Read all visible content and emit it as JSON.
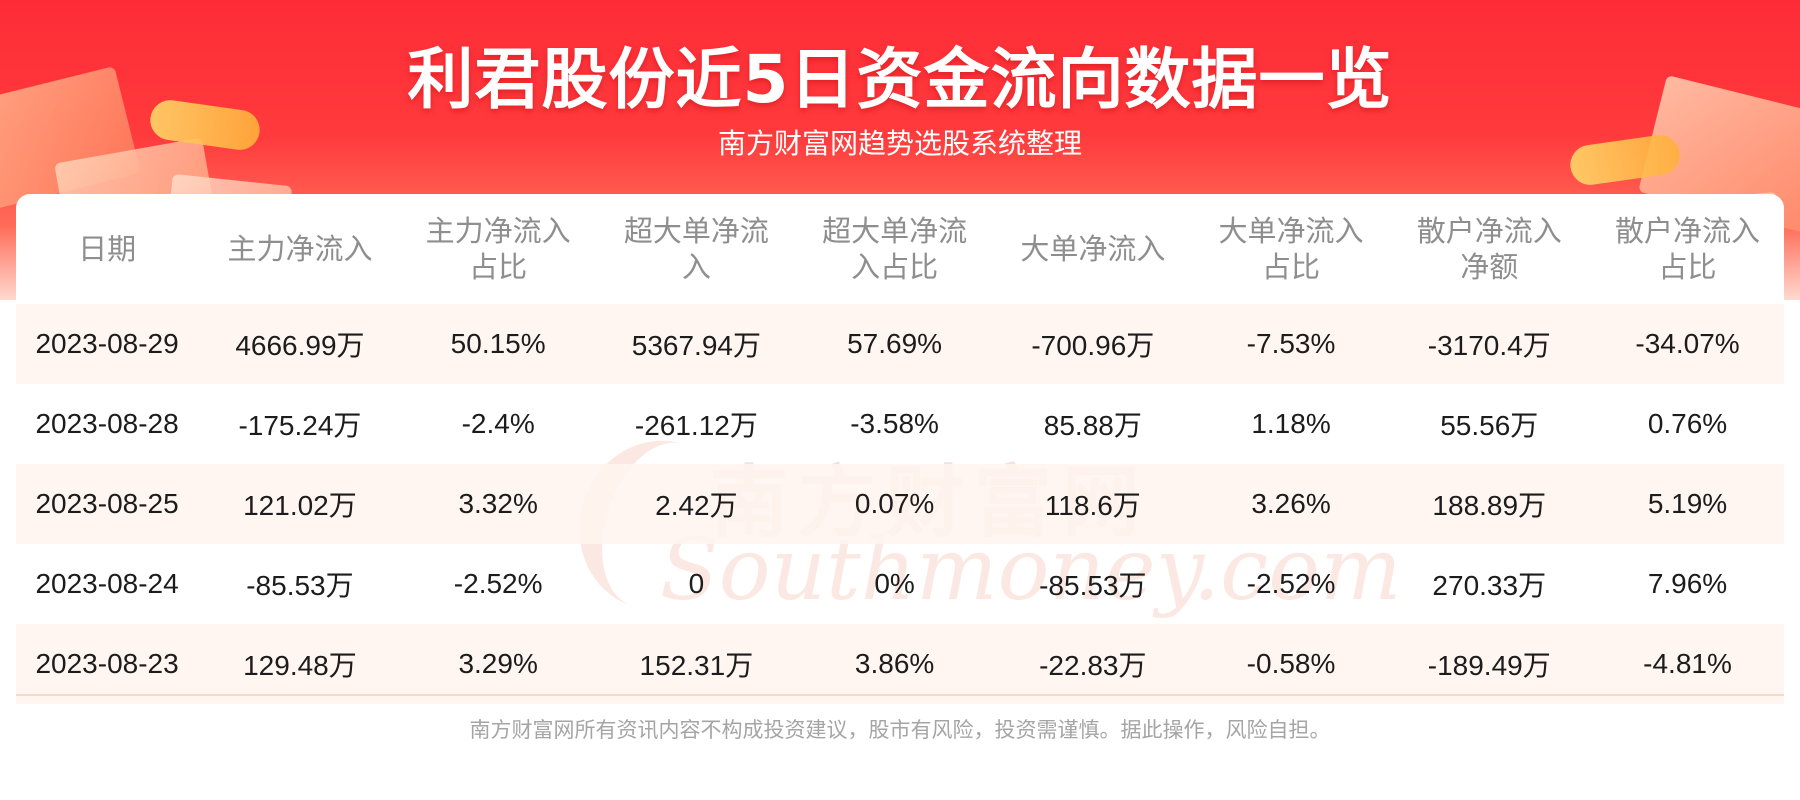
{
  "title": "利君股份近5日资金流向数据一览",
  "subtitle": "南方财富网趋势选股系统整理",
  "watermark": {
    "cn": "南方财富网",
    "en": "Southmoney.com"
  },
  "columns": [
    "日期",
    "主力净流入",
    "主力净流入占比",
    "超大单净流入",
    "超大单净流入占比",
    "大单净流入",
    "大单净流入占比",
    "散户净流入净额",
    "散户净流入占比"
  ],
  "column_lines": [
    [
      "日期"
    ],
    [
      "主力净流入"
    ],
    [
      "主力净流入",
      "占比"
    ],
    [
      "超大单净流",
      "入"
    ],
    [
      "超大单净流",
      "入占比"
    ],
    [
      "大单净流入"
    ],
    [
      "大单净流入",
      "占比"
    ],
    [
      "散户净流入",
      "净额"
    ],
    [
      "散户净流入",
      "占比"
    ]
  ],
  "rows": [
    [
      "2023-08-29",
      "4666.99万",
      "50.15%",
      "5367.94万",
      "57.69%",
      "-700.96万",
      "-7.53%",
      "-3170.4万",
      "-34.07%"
    ],
    [
      "2023-08-28",
      "-175.24万",
      "-2.4%",
      "-261.12万",
      "-3.58%",
      "85.88万",
      "1.18%",
      "55.56万",
      "0.76%"
    ],
    [
      "2023-08-25",
      "121.02万",
      "3.32%",
      "2.42万",
      "0.07%",
      "118.6万",
      "3.26%",
      "188.89万",
      "5.19%"
    ],
    [
      "2023-08-24",
      "-85.53万",
      "-2.52%",
      "0",
      "0%",
      "-85.53万",
      "-2.52%",
      "270.33万",
      "7.96%"
    ],
    [
      "2023-08-23",
      "129.48万",
      "3.29%",
      "152.31万",
      "3.86%",
      "-22.83万",
      "-0.58%",
      "-189.49万",
      "-4.81%"
    ]
  ],
  "footer": "南方财富网所有资讯内容不构成投资建议，股市有风险，投资需谨慎。据此操作，风险自担。",
  "colors": {
    "header_red": "#fe2c37",
    "row_tint": "#fff5ee",
    "header_text_gray": "#8e8e8e"
  }
}
